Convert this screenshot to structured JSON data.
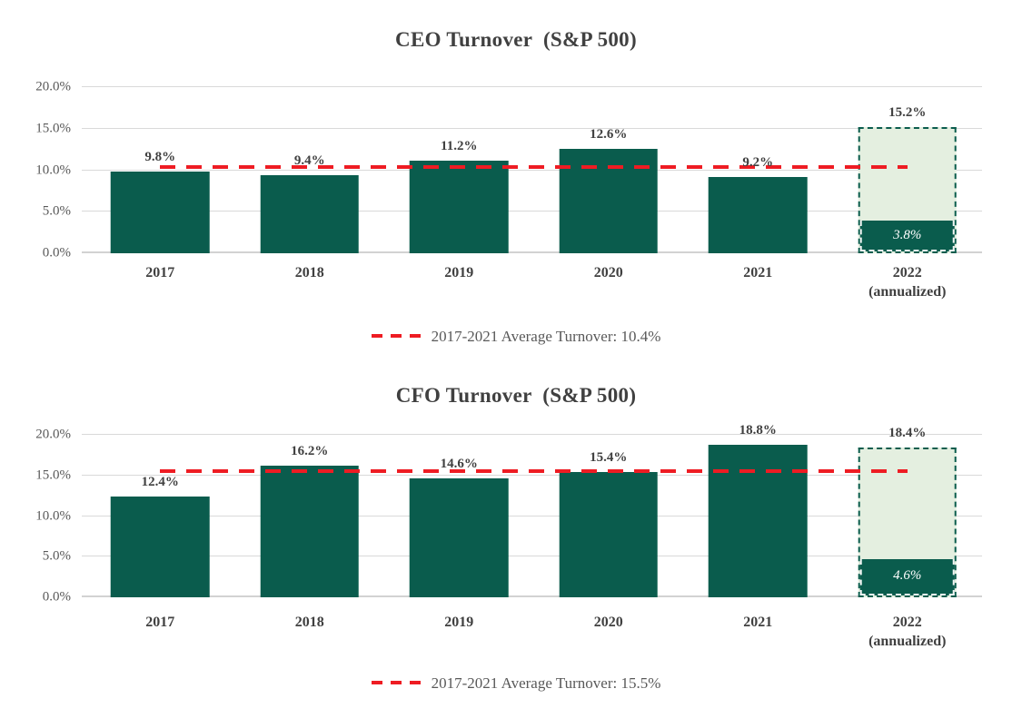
{
  "colors": {
    "bar_green": "#0A5C4D",
    "projected_fill": "#E4EFE0",
    "projected_border_green": "#0A5C4D",
    "average_line_red": "#EE1C23",
    "gridline_gray": "#D9D9D9",
    "title_text": "#404040",
    "axis_text": "#595959",
    "inner_label_text": "#FFFFFF"
  },
  "chart_data": [
    {
      "type": "bar",
      "title": "CEO Turnover  (S&P 500)",
      "categories": [
        "2017",
        "2018",
        "2019",
        "2020",
        "2021",
        "2022"
      ],
      "last_category_note": "(annualized)",
      "values": [
        9.8,
        9.4,
        11.2,
        12.6,
        9.2,
        15.2
      ],
      "bar_labels": [
        "9.8%",
        "9.4%",
        "11.2%",
        "12.6%",
        "9.2%",
        "15.2%"
      ],
      "projected_last_bar": {
        "total": 15.2,
        "solid_portion": 3.8,
        "solid_portion_label": "3.8%",
        "style": "dashed-outline-projection"
      },
      "average_line": {
        "value": 10.4,
        "legend_label": "2017-2021 Average Turnover: 10.4%"
      },
      "ylim": [
        0,
        20
      ],
      "ytick_values": [
        0,
        5,
        10,
        15,
        20
      ],
      "ytick_labels": [
        "0.0%",
        "5.0%",
        "10.0%",
        "15.0%",
        "20.0%"
      ],
      "grid": true,
      "legend_position": "bottom-center"
    },
    {
      "type": "bar",
      "title": "CFO Turnover  (S&P 500)",
      "categories": [
        "2017",
        "2018",
        "2019",
        "2020",
        "2021",
        "2022"
      ],
      "last_category_note": "(annualized)",
      "values": [
        12.4,
        16.2,
        14.6,
        15.4,
        18.8,
        18.4
      ],
      "bar_labels": [
        "12.4%",
        "16.2%",
        "14.6%",
        "15.4%",
        "18.8%",
        "18.4%"
      ],
      "projected_last_bar": {
        "total": 18.4,
        "solid_portion": 4.6,
        "solid_portion_label": "4.6%",
        "style": "dashed-outline-projection"
      },
      "average_line": {
        "value": 15.5,
        "legend_label": "2017-2021 Average Turnover: 15.5%"
      },
      "ylim": [
        0,
        20
      ],
      "ytick_values": [
        0,
        5,
        10,
        15,
        20
      ],
      "ytick_labels": [
        "0.0%",
        "5.0%",
        "10.0%",
        "15.0%",
        "20.0%"
      ],
      "grid": true,
      "legend_position": "bottom-center"
    }
  ]
}
